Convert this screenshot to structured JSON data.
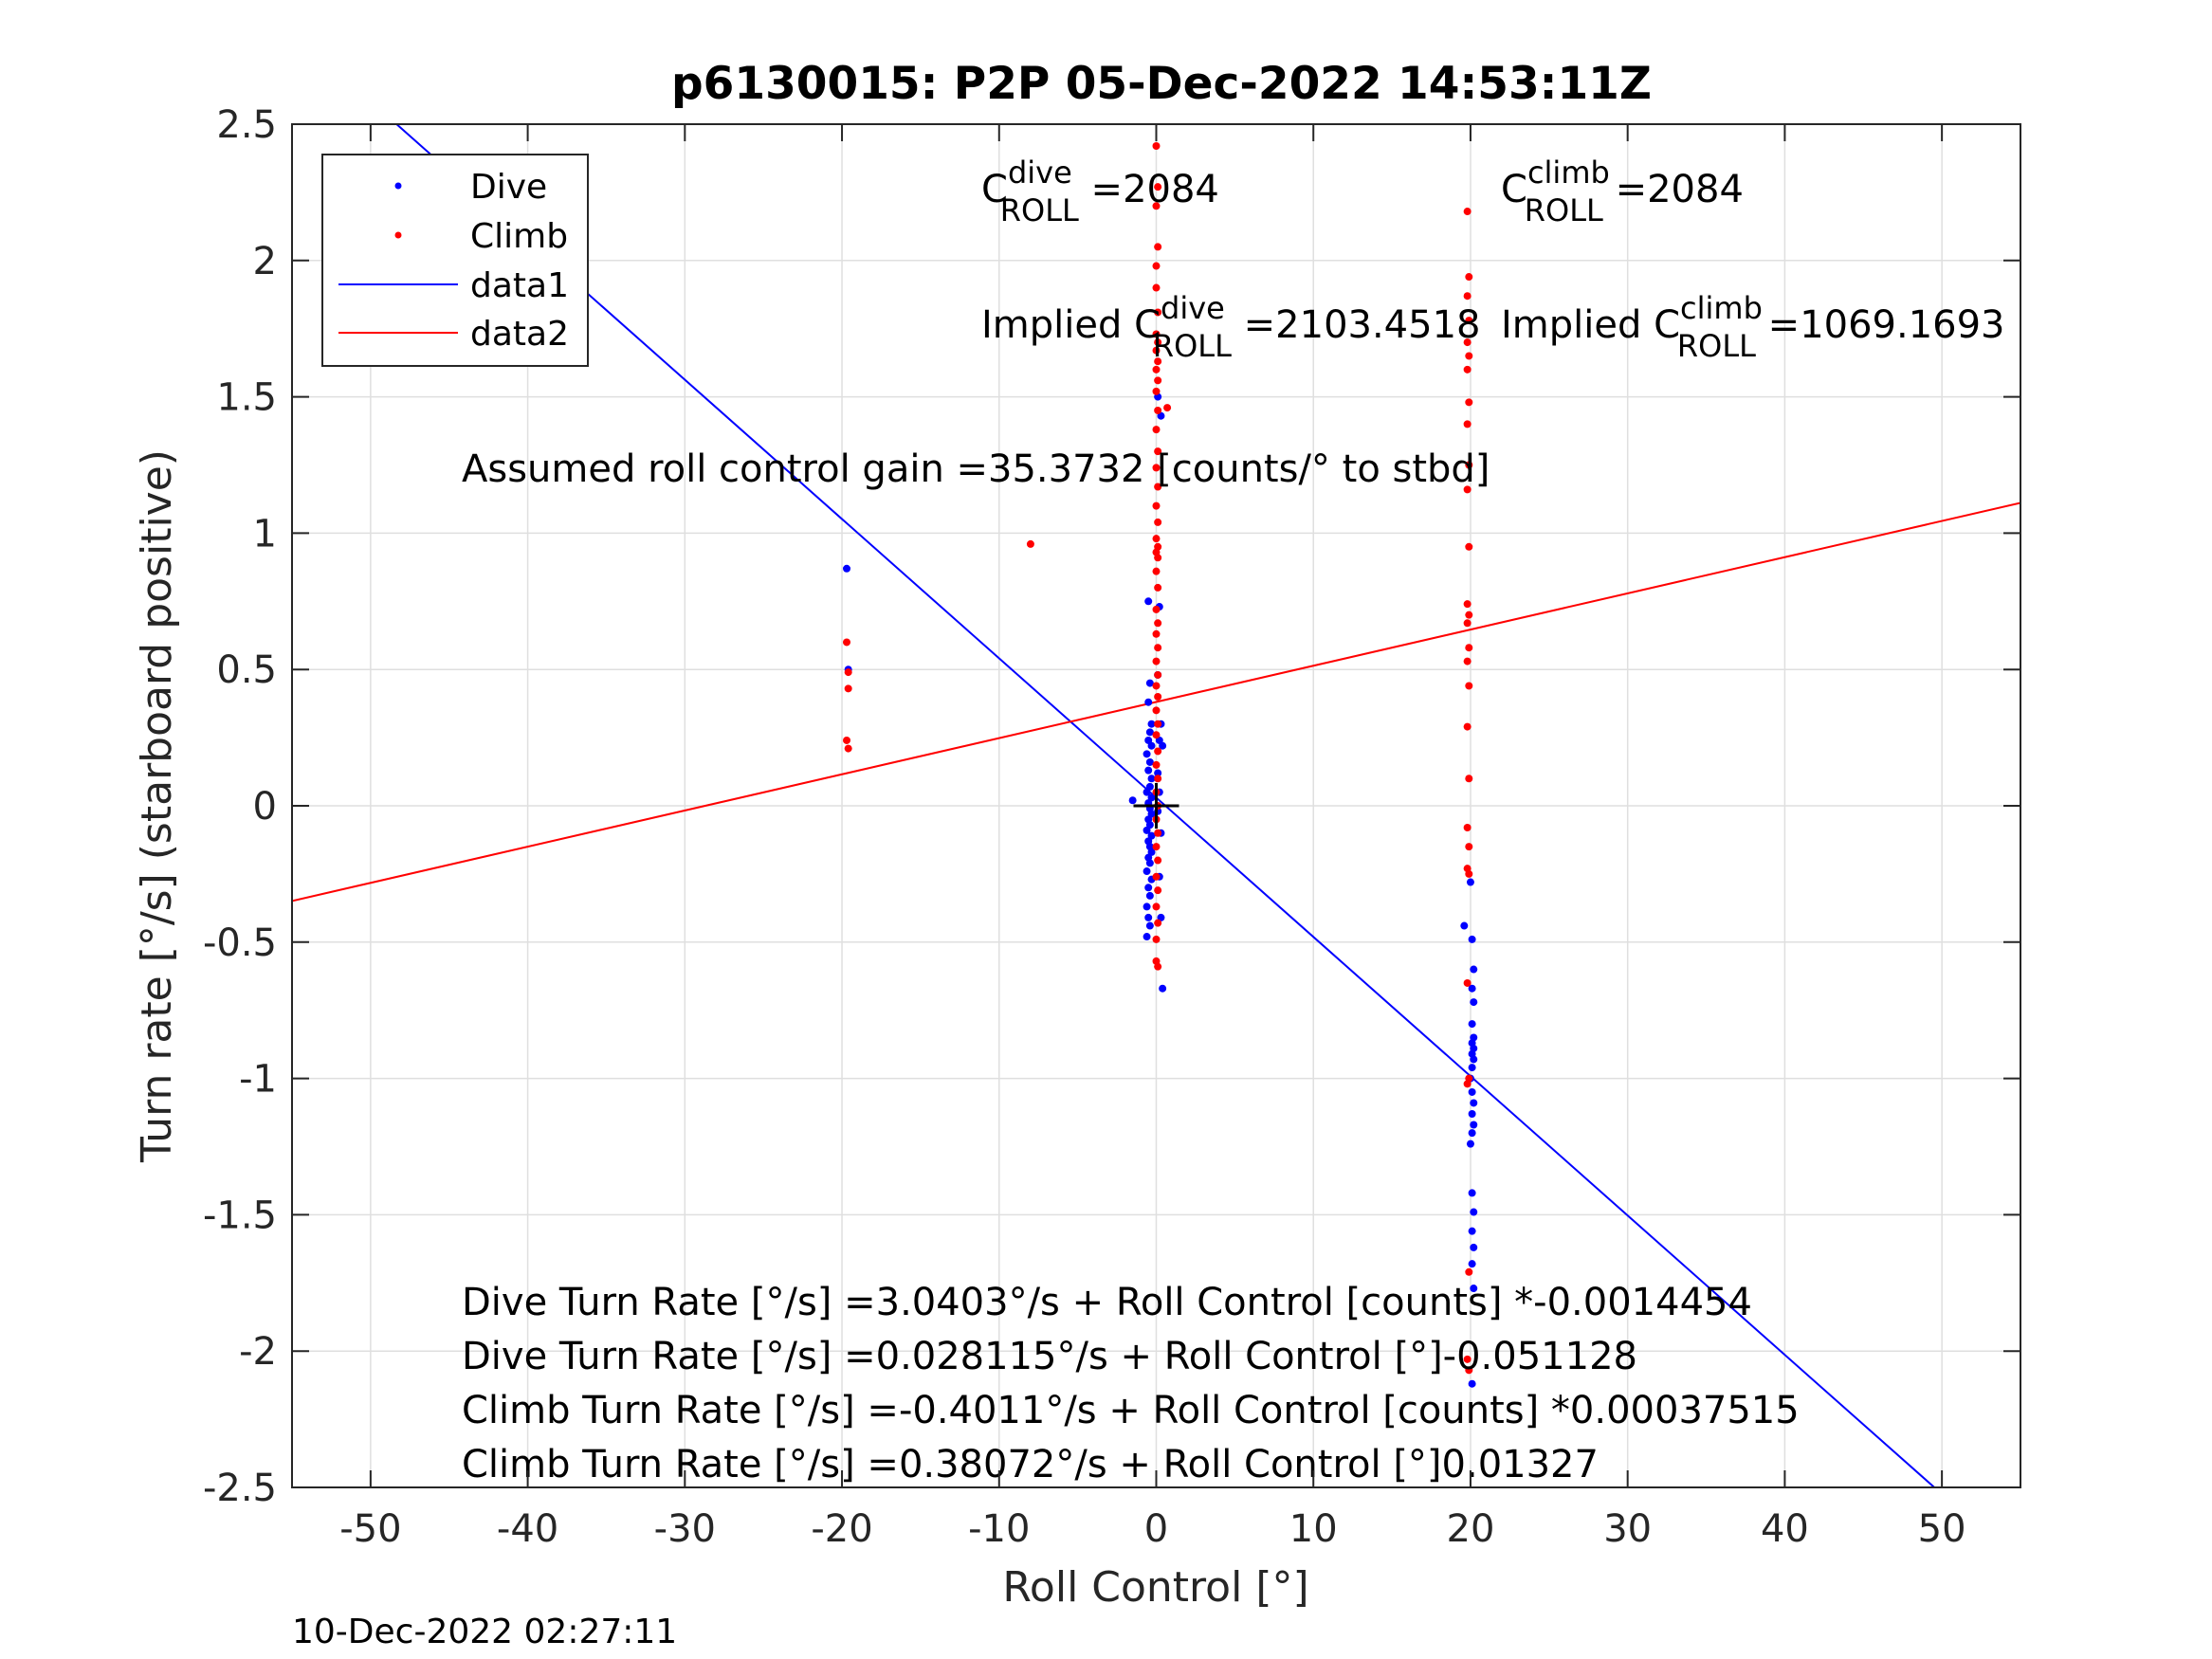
{
  "chart_data": {
    "type": "scatter",
    "title": "p6130015: P2P 05-Dec-2022 14:53:11Z",
    "xlabel": "Roll Control [°]",
    "ylabel": "Turn rate [°/s] (starboard positive)",
    "xlim": [
      -55,
      55
    ],
    "ylim": [
      -2.5,
      2.5
    ],
    "xticks": [
      -50,
      -40,
      -30,
      -20,
      -10,
      0,
      10,
      20,
      30,
      40,
      50
    ],
    "yticks": [
      -2.5,
      -2,
      -1.5,
      -1,
      -0.5,
      0,
      0.5,
      1,
      1.5,
      2,
      2.5
    ],
    "xtick_labels": [
      "-50",
      "-40",
      "-30",
      "-20",
      "-10",
      "0",
      "10",
      "20",
      "30",
      "40",
      "50"
    ],
    "ytick_labels": [
      "-2.5",
      "-2",
      "-1.5",
      "-1",
      "-0.5",
      "0",
      "0.5",
      "1",
      "1.5",
      "2",
      "2.5"
    ],
    "grid": true,
    "legend_position": "top-left",
    "legend": [
      "Dive",
      "Climb",
      "data1",
      "data2"
    ],
    "series": [
      {
        "name": "Dive",
        "kind": "points",
        "color": "#0000ff",
        "points": [
          [
            -19.7,
            0.87
          ],
          [
            -19.6,
            0.5
          ],
          [
            -1.5,
            0.02
          ],
          [
            -0.5,
            0.75
          ],
          [
            -0.4,
            0.45
          ],
          [
            -0.5,
            0.38
          ],
          [
            -0.3,
            0.3
          ],
          [
            -0.4,
            0.27
          ],
          [
            -0.5,
            0.24
          ],
          [
            -0.3,
            0.22
          ],
          [
            -0.6,
            0.19
          ],
          [
            -0.4,
            0.16
          ],
          [
            -0.5,
            0.13
          ],
          [
            -0.3,
            0.1
          ],
          [
            -0.4,
            0.07
          ],
          [
            -0.6,
            0.05
          ],
          [
            -0.3,
            0.03
          ],
          [
            -0.5,
            0.01
          ],
          [
            -0.4,
            -0.01
          ],
          [
            -0.3,
            -0.03
          ],
          [
            -0.5,
            -0.05
          ],
          [
            -0.4,
            -0.07
          ],
          [
            -0.6,
            -0.09
          ],
          [
            -0.3,
            -0.11
          ],
          [
            -0.5,
            -0.13
          ],
          [
            -0.4,
            -0.15
          ],
          [
            -0.3,
            -0.17
          ],
          [
            -0.5,
            -0.19
          ],
          [
            -0.4,
            -0.21
          ],
          [
            -0.6,
            -0.24
          ],
          [
            -0.3,
            -0.27
          ],
          [
            -0.5,
            -0.3
          ],
          [
            -0.4,
            -0.33
          ],
          [
            -0.6,
            -0.37
          ],
          [
            -0.5,
            -0.41
          ],
          [
            -0.4,
            -0.44
          ],
          [
            -0.6,
            -0.48
          ],
          [
            0.1,
            1.5
          ],
          [
            0.3,
            1.43
          ],
          [
            0.2,
            0.73
          ],
          [
            0.1,
            0.48
          ],
          [
            0.3,
            0.3
          ],
          [
            0.2,
            0.24
          ],
          [
            0.4,
            0.22
          ],
          [
            0.1,
            0.12
          ],
          [
            0.2,
            0.05
          ],
          [
            0.1,
            -0.02
          ],
          [
            0.3,
            -0.1
          ],
          [
            0.2,
            -0.26
          ],
          [
            0.3,
            -0.41
          ],
          [
            0.4,
            -0.67
          ],
          [
            19.6,
            -0.44
          ],
          [
            20.0,
            -0.28
          ],
          [
            20.1,
            -0.49
          ],
          [
            20.2,
            -0.6
          ],
          [
            20.1,
            -0.67
          ],
          [
            20.2,
            -0.72
          ],
          [
            20.1,
            -0.8
          ],
          [
            20.2,
            -0.85
          ],
          [
            20.1,
            -0.87
          ],
          [
            20.2,
            -0.89
          ],
          [
            20.1,
            -0.91
          ],
          [
            20.2,
            -0.93
          ],
          [
            20.1,
            -0.96
          ],
          [
            20.0,
            -1.0
          ],
          [
            20.1,
            -1.05
          ],
          [
            20.2,
            -1.09
          ],
          [
            20.1,
            -1.13
          ],
          [
            20.2,
            -1.17
          ],
          [
            20.1,
            -1.2
          ],
          [
            20.0,
            -1.24
          ],
          [
            20.1,
            -1.42
          ],
          [
            20.2,
            -1.49
          ],
          [
            20.1,
            -1.56
          ],
          [
            20.2,
            -1.62
          ],
          [
            20.1,
            -1.68
          ],
          [
            20.2,
            -1.77
          ],
          [
            20.1,
            -2.12
          ]
        ]
      },
      {
        "name": "Climb",
        "kind": "points",
        "color": "#ff0000",
        "points": [
          [
            -19.7,
            0.6
          ],
          [
            -19.6,
            0.49
          ],
          [
            -19.6,
            0.43
          ],
          [
            -19.7,
            0.24
          ],
          [
            -19.6,
            0.21
          ],
          [
            -8.0,
            0.96
          ],
          [
            0.0,
            2.42
          ],
          [
            0.1,
            2.27
          ],
          [
            0.0,
            2.2
          ],
          [
            0.1,
            2.05
          ],
          [
            0.0,
            1.98
          ],
          [
            0.0,
            1.9
          ],
          [
            0.1,
            1.81
          ],
          [
            0.0,
            1.73
          ],
          [
            0.1,
            1.7
          ],
          [
            0.0,
            1.67
          ],
          [
            0.1,
            1.63
          ],
          [
            0.0,
            1.6
          ],
          [
            0.1,
            1.56
          ],
          [
            0.0,
            1.52
          ],
          [
            0.1,
            1.45
          ],
          [
            0.7,
            1.46
          ],
          [
            0.0,
            1.38
          ],
          [
            0.1,
            1.3
          ],
          [
            0.0,
            1.24
          ],
          [
            0.1,
            1.17
          ],
          [
            0.0,
            1.1
          ],
          [
            0.1,
            1.04
          ],
          [
            0.0,
            0.98
          ],
          [
            0.1,
            0.95
          ],
          [
            0.0,
            0.93
          ],
          [
            0.1,
            0.91
          ],
          [
            0.0,
            0.86
          ],
          [
            0.1,
            0.8
          ],
          [
            0.0,
            0.72
          ],
          [
            0.1,
            0.67
          ],
          [
            0.0,
            0.63
          ],
          [
            0.1,
            0.58
          ],
          [
            0.0,
            0.53
          ],
          [
            0.1,
            0.48
          ],
          [
            0.0,
            0.44
          ],
          [
            0.1,
            0.4
          ],
          [
            0.0,
            0.35
          ],
          [
            0.1,
            0.3
          ],
          [
            0.0,
            0.26
          ],
          [
            0.1,
            0.2
          ],
          [
            0.0,
            0.15
          ],
          [
            0.1,
            0.1
          ],
          [
            0.0,
            0.05
          ],
          [
            0.1,
            0.0
          ],
          [
            0.0,
            -0.05
          ],
          [
            0.1,
            -0.1
          ],
          [
            0.0,
            -0.15
          ],
          [
            0.1,
            -0.2
          ],
          [
            0.0,
            -0.26
          ],
          [
            0.1,
            -0.31
          ],
          [
            0.0,
            -0.37
          ],
          [
            0.1,
            -0.43
          ],
          [
            0.0,
            -0.49
          ],
          [
            0.0,
            -0.57
          ],
          [
            0.1,
            -0.59
          ],
          [
            19.8,
            2.18
          ],
          [
            19.9,
            1.94
          ],
          [
            19.8,
            1.87
          ],
          [
            19.9,
            1.78
          ],
          [
            19.8,
            1.7
          ],
          [
            19.9,
            1.65
          ],
          [
            19.8,
            1.6
          ],
          [
            19.9,
            1.48
          ],
          [
            19.8,
            1.4
          ],
          [
            19.9,
            1.25
          ],
          [
            19.8,
            1.16
          ],
          [
            19.9,
            0.95
          ],
          [
            19.8,
            0.74
          ],
          [
            19.9,
            0.7
          ],
          [
            19.8,
            0.67
          ],
          [
            19.9,
            0.58
          ],
          [
            19.8,
            0.53
          ],
          [
            19.9,
            0.44
          ],
          [
            19.8,
            0.29
          ],
          [
            19.9,
            0.1
          ],
          [
            19.8,
            -0.08
          ],
          [
            19.9,
            -0.15
          ],
          [
            19.8,
            -0.23
          ],
          [
            19.9,
            -0.25
          ],
          [
            19.8,
            -0.65
          ],
          [
            19.9,
            -1.0
          ],
          [
            19.8,
            -1.02
          ],
          [
            19.9,
            -1.71
          ],
          [
            19.8,
            -2.03
          ],
          [
            19.9,
            -2.07
          ]
        ]
      },
      {
        "name": "data1",
        "kind": "line",
        "color": "#0000ff",
        "x": [
          -55,
          55
        ],
        "y": [
          2.84,
          -2.78
        ]
      },
      {
        "name": "data2",
        "kind": "line",
        "color": "#ff0000",
        "x": [
          -55,
          55
        ],
        "y": [
          -0.349,
          1.111
        ]
      }
    ],
    "marker": {
      "x": 0,
      "y": 0,
      "symbol": "+",
      "color": "#000000"
    },
    "annotations": {
      "c_dive_prefix": "C",
      "c_dive_sup": "dive",
      "c_dive_sub": "ROLL",
      "c_dive_value": " =2084",
      "c_climb_prefix": "C",
      "c_climb_sup": "climb",
      "c_climb_sub": "ROLL",
      "c_climb_value": " =2084",
      "implied_dive_prefix": "Implied C",
      "implied_dive_sup": "dive",
      "implied_dive_sub": "ROLL",
      "implied_dive_value": " =2103.4518",
      "implied_climb_prefix": "Implied C",
      "implied_climb_sup": "climb",
      "implied_climb_sub": "ROLL",
      "implied_climb_value": " =1069.1693",
      "gain": "Assumed roll control gain =35.3732 [counts/° to stbd]",
      "eq1": "Dive Turn Rate [°/s] =3.0403°/s + Roll Control [counts] *-0.0014454",
      "eq2": "Dive Turn Rate [°/s] =0.028115°/s + Roll Control [°]-0.051128",
      "eq3": "Climb Turn Rate [°/s] =-0.4011°/s + Roll Control [counts] *0.00037515",
      "eq4": "Climb Turn Rate [°/s] =0.38072°/s + Roll Control [°]0.01327"
    }
  },
  "timestamp": "10-Dec-2022 02:27:11"
}
